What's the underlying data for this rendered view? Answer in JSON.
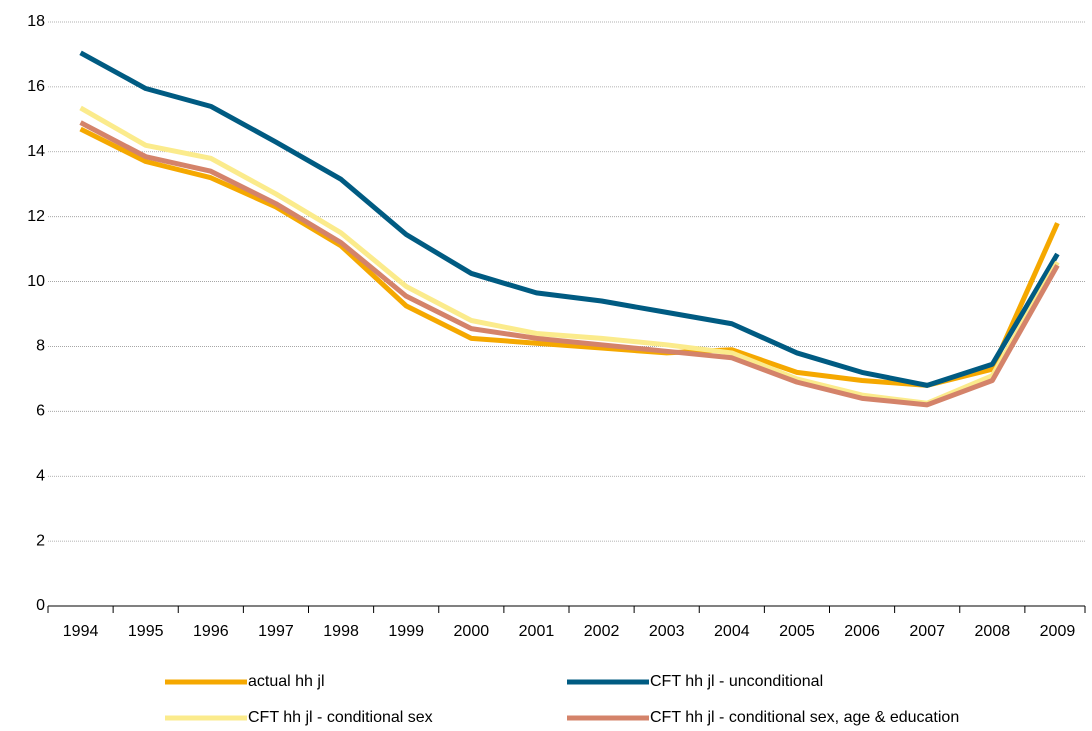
{
  "chart_data": {
    "type": "line",
    "categories": [
      "1994",
      "1995",
      "1996",
      "1997",
      "1998",
      "1999",
      "2000",
      "2001",
      "2002",
      "2003",
      "2004",
      "2005",
      "2006",
      "2007",
      "2008",
      "2009"
    ],
    "series": [
      {
        "name": "actual hh jl",
        "color": "#f5a800",
        "values": [
          14.7,
          13.7,
          13.2,
          12.3,
          11.1,
          9.25,
          8.25,
          8.1,
          7.95,
          7.8,
          7.9,
          7.2,
          6.95,
          6.8,
          7.3,
          11.8
        ]
      },
      {
        "name": "CFT hh jl - unconditional",
        "color": "#005b82",
        "values": [
          17.05,
          15.95,
          15.4,
          14.3,
          13.15,
          11.45,
          10.25,
          9.65,
          9.4,
          9.05,
          8.7,
          7.8,
          7.2,
          6.8,
          7.45,
          10.85
        ]
      },
      {
        "name": "CFT hh jl - conditional sex",
        "color": "#fbeb8c",
        "values": [
          15.35,
          14.2,
          13.8,
          12.7,
          11.5,
          9.85,
          8.8,
          8.4,
          8.25,
          8.05,
          7.8,
          7.0,
          6.5,
          6.25,
          7.1,
          10.6
        ]
      },
      {
        "name": "CFT hh jl - conditional sex, age & education",
        "color": "#d4836a",
        "values": [
          14.9,
          13.85,
          13.4,
          12.4,
          11.2,
          9.55,
          8.55,
          8.25,
          8.05,
          7.85,
          7.65,
          6.9,
          6.4,
          6.2,
          6.95,
          10.5
        ]
      }
    ],
    "ylim": [
      0,
      18
    ],
    "yticks": [
      0,
      2,
      4,
      6,
      8,
      10,
      12,
      14,
      16,
      18
    ],
    "grid": true
  }
}
